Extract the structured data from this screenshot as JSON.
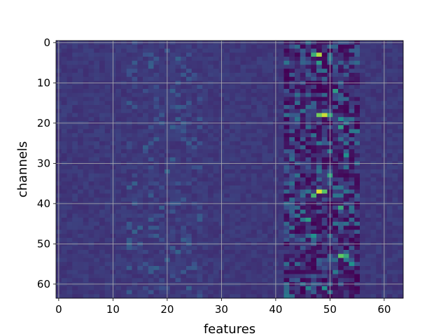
{
  "chart_data": {
    "type": "heatmap",
    "title": "",
    "xlabel": "features",
    "ylabel": "channels",
    "x_ticks": [
      0,
      10,
      20,
      30,
      40,
      50,
      60
    ],
    "y_ticks": [
      0,
      10,
      20,
      30,
      40,
      50,
      60
    ],
    "xlim": [
      -0.5,
      63.5
    ],
    "ylim": [
      63.5,
      -0.5
    ],
    "n_rows": 64,
    "n_cols": 64,
    "y_axis_inverted": true,
    "grid": true,
    "colormap": "viridis",
    "background_level": 0.17,
    "colormap_stops": [
      "#440154",
      "#3b528b",
      "#21918c",
      "#5ec962",
      "#fde725"
    ],
    "notable_cells": [
      {
        "row": 3,
        "col": 48,
        "value": 0.88
      },
      {
        "row": 3,
        "col": 47,
        "value": 0.62
      },
      {
        "row": 5,
        "col": 48,
        "value": 0.55
      },
      {
        "row": 12,
        "col": 51,
        "value": 0.55
      },
      {
        "row": 18,
        "col": 49,
        "value": 0.92
      },
      {
        "row": 18,
        "col": 48,
        "value": 0.78
      },
      {
        "row": 18,
        "col": 50,
        "value": 0.6
      },
      {
        "row": 19,
        "col": 52,
        "value": 0.5
      },
      {
        "row": 21,
        "col": 52,
        "value": 0.55
      },
      {
        "row": 28,
        "col": 53,
        "value": 0.5
      },
      {
        "row": 33,
        "col": 50,
        "value": 0.58
      },
      {
        "row": 37,
        "col": 48,
        "value": 0.95
      },
      {
        "row": 37,
        "col": 49,
        "value": 0.72
      },
      {
        "row": 38,
        "col": 47,
        "value": 0.65
      },
      {
        "row": 41,
        "col": 52,
        "value": 0.6
      },
      {
        "row": 44,
        "col": 46,
        "value": 0.55
      },
      {
        "row": 48,
        "col": 47,
        "value": 0.5
      },
      {
        "row": 53,
        "col": 52,
        "value": 0.75
      },
      {
        "row": 53,
        "col": 53,
        "value": 0.6
      },
      {
        "row": 55,
        "col": 54,
        "value": 0.5
      },
      {
        "row": 61,
        "col": 49,
        "value": 0.5
      },
      {
        "row": 61,
        "col": 46,
        "value": 0.45
      }
    ]
  }
}
